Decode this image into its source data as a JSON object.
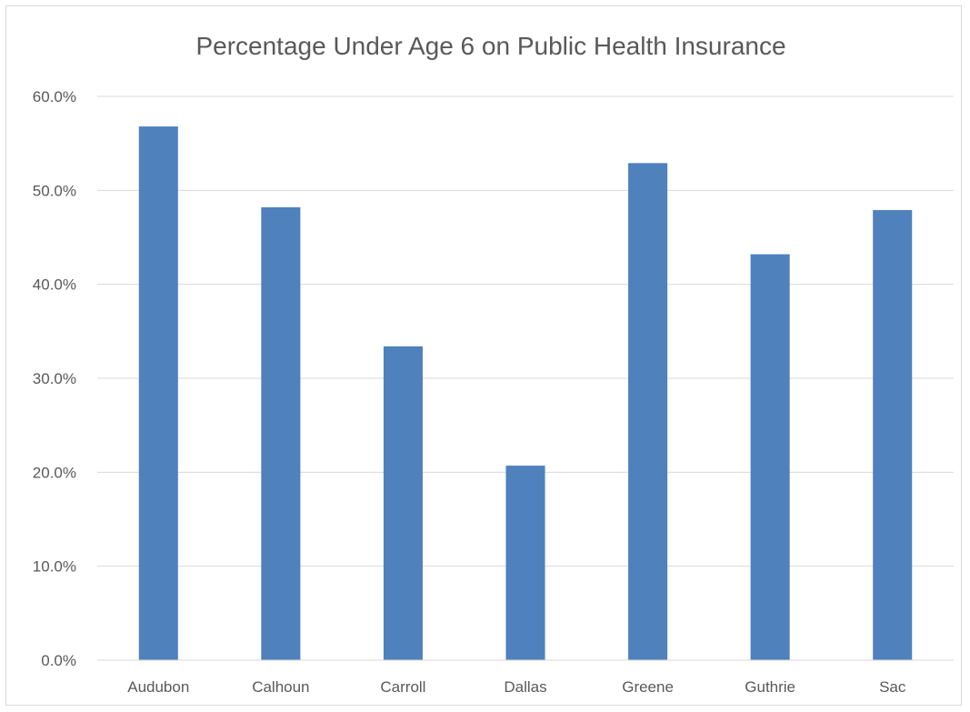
{
  "chart_data": {
    "type": "bar",
    "title": "Percentage Under Age 6 on Public Health Insurance",
    "xlabel": "",
    "ylabel": "",
    "categories": [
      "Audubon",
      "Calhoun",
      "Carroll",
      "Dallas",
      "Greene",
      "Guthrie",
      "Sac"
    ],
    "values": [
      56.8,
      48.2,
      33.4,
      20.7,
      52.9,
      43.2,
      47.9
    ],
    "ylim": [
      0,
      60
    ],
    "yticks": [
      "0.0%",
      "10.0%",
      "20.0%",
      "30.0%",
      "40.0%",
      "50.0%",
      "60.0%"
    ],
    "grid": true,
    "legend": "none",
    "bar_color": "#4f81bd"
  }
}
